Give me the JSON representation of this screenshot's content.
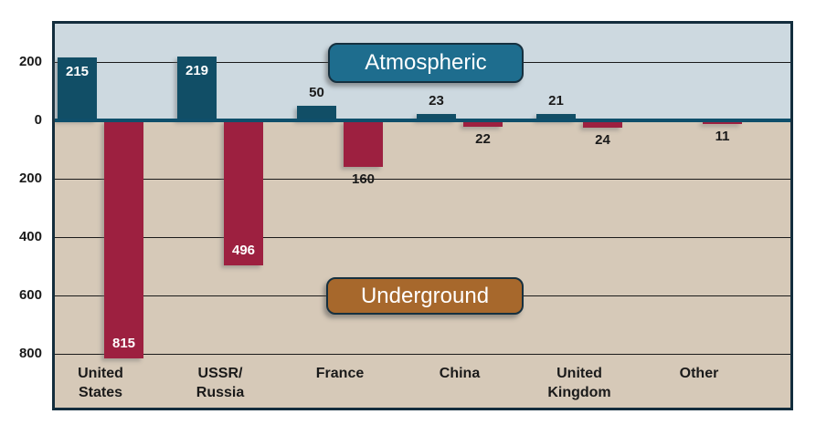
{
  "chart_data": {
    "type": "bar",
    "title": "",
    "description": "Diverging vertical bar chart of nuclear tests: atmospheric counts drawn upward above the zero axis, underground counts drawn downward below it",
    "categories": [
      "United States",
      "USSR/Russia",
      "France",
      "China",
      "United Kingdom",
      "Other"
    ],
    "category_label_lines": [
      [
        "United",
        "States"
      ],
      [
        "USSR/",
        "Russia"
      ],
      [
        "France"
      ],
      [
        "China"
      ],
      [
        "United",
        "Kingdom"
      ],
      [
        "Other"
      ]
    ],
    "series": [
      {
        "name": "Atmospheric",
        "direction": "up",
        "color": "#114e66",
        "values": [
          215,
          219,
          50,
          23,
          21,
          null
        ]
      },
      {
        "name": "Underground",
        "direction": "down",
        "color": "#9d2040",
        "values": [
          815,
          496,
          160,
          22,
          24,
          11
        ]
      }
    ],
    "y_axis": {
      "tick_labels": [
        "200",
        "0",
        "200",
        "400",
        "600",
        "800"
      ],
      "tick_values": [
        200,
        0,
        -200,
        -400,
        -600,
        -800
      ],
      "note": "labels show absolute values; below-axis ticks represent underground counts"
    },
    "legend": [
      {
        "label": "Atmospheric",
        "bg_color": "#1e6d8e"
      },
      {
        "label": "Underground",
        "bg_color": "#a7682c"
      }
    ],
    "layout_hints": {
      "grid": "on",
      "legend_position": "inside-plot floating boxes",
      "ylim": [
        -850,
        340
      ]
    },
    "colors": {
      "sky_background": "#cdd9e0",
      "ground_background": "#d6c9b8",
      "atmospheric_bar": "#114e66",
      "underground_bar": "#9d2040",
      "frame_border": "#132d3d",
      "zero_line": "#0f4f6b",
      "gridline": "#1a1a1a",
      "inside_bar_label": "#ffffff",
      "outside_bar_label": "#1a1a1a"
    }
  }
}
